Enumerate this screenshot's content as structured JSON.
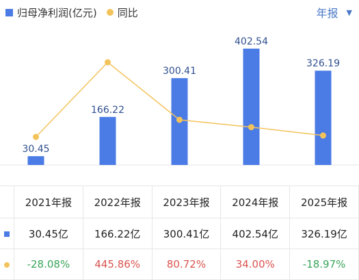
{
  "header": {
    "legend_bar_label": "归母净利润(亿元)",
    "legend_line_label": "同比",
    "period_label": "年报",
    "period_caret": "▼"
  },
  "colors": {
    "bar": "#4b7be5",
    "line": "#f3c35b",
    "positive": "#d9534f",
    "negative": "#3aa55a",
    "period": "#4a78c8"
  },
  "chart_data": {
    "type": "bar",
    "categories": [
      "2021年报",
      "2022年报",
      "2023年报",
      "2024年报",
      "2025年报"
    ],
    "series": [
      {
        "name": "归母净利润(亿元)",
        "type": "bar",
        "values": [
          30.45,
          166.22,
          300.41,
          402.54,
          326.19
        ]
      },
      {
        "name": "同比",
        "type": "line",
        "values": [
          -28.08,
          445.86,
          80.72,
          34.0,
          -18.97
        ]
      }
    ],
    "bar_labels": [
      "30.45",
      "166.22",
      "300.41",
      "402.54",
      "326.19"
    ]
  },
  "table": {
    "headers": [
      "2021年报",
      "2022年报",
      "2023年报",
      "2024年报",
      "2025年报"
    ],
    "values_row": [
      "30.45亿",
      "166.22亿",
      "300.41亿",
      "402.54亿",
      "326.19亿"
    ],
    "yoy_row": [
      "-28.08%",
      "445.86%",
      "80.72%",
      "34.00%",
      "-18.97%"
    ]
  }
}
